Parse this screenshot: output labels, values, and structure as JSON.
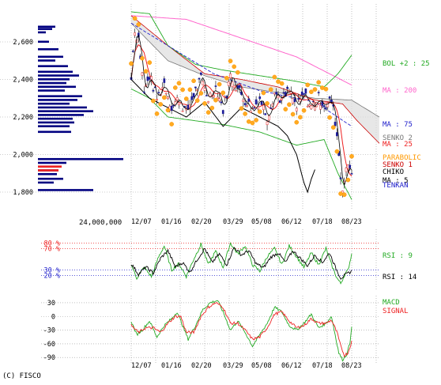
{
  "chart_data": [
    {
      "type": "line",
      "panel": "price",
      "ylim": [
        1720,
        2760
      ],
      "y_ticks": [
        "2,600",
        "2,400",
        "2,200",
        "2,000",
        "1,800"
      ],
      "y_tick_values": [
        2600,
        2400,
        2200,
        2000,
        1800
      ],
      "x_ticks": [
        "12/07",
        "01/16",
        "02/20",
        "03/29",
        "05/08",
        "06/12",
        "07/18",
        "08/23"
      ],
      "volume_label": "24,000,000",
      "grid": true,
      "volume_profile": [
        {
          "price": 2680,
          "w": 22
        },
        {
          "price": 2668,
          "w": 18
        },
        {
          "price": 2650,
          "w": 10
        },
        {
          "price": 2600,
          "w": 14
        },
        {
          "price": 2560,
          "w": 26
        },
        {
          "price": 2520,
          "w": 32
        },
        {
          "price": 2500,
          "w": 22
        },
        {
          "price": 2470,
          "w": 38
        },
        {
          "price": 2440,
          "w": 44
        },
        {
          "price": 2420,
          "w": 52
        },
        {
          "price": 2400,
          "w": 40
        },
        {
          "price": 2380,
          "w": 36
        },
        {
          "price": 2360,
          "w": 48
        },
        {
          "price": 2340,
          "w": 34
        },
        {
          "price": 2310,
          "w": 56
        },
        {
          "price": 2290,
          "w": 50
        },
        {
          "price": 2270,
          "w": 40
        },
        {
          "price": 2250,
          "w": 62
        },
        {
          "price": 2230,
          "w": 70
        },
        {
          "price": 2210,
          "w": 58
        },
        {
          "price": 2190,
          "w": 44
        },
        {
          "price": 2170,
          "w": 46
        },
        {
          "price": 2150,
          "w": 40
        },
        {
          "price": 2120,
          "w": 42
        },
        {
          "price": 1975,
          "w": 108
        },
        {
          "price": 1955,
          "w": 36
        },
        {
          "price": 1935,
          "w": 30
        },
        {
          "price": 1915,
          "w": 26
        },
        {
          "price": 1895,
          "w": 24
        },
        {
          "price": 1870,
          "w": 32
        },
        {
          "price": 1850,
          "w": 20
        },
        {
          "price": 1810,
          "w": 70
        }
      ],
      "volume_profile_red": [
        {
          "price": 1935,
          "w": 30
        },
        {
          "price": 1915,
          "w": 26
        }
      ],
      "series": [
        {
          "name": "BOL +2 : 25",
          "color": "#22aa22"
        },
        {
          "name": "MA : 200",
          "color": "#ff66cc"
        },
        {
          "name": "MA : 75",
          "color": "#2222cc"
        },
        {
          "name": "SENKO 2",
          "color": "#777777"
        },
        {
          "name": "MA : 25",
          "color": "#ee2222"
        },
        {
          "name": "PARABOLIC",
          "color": "#ff9900"
        },
        {
          "name": "SENKO 1",
          "color": "#cc0000"
        },
        {
          "name": "CHIKO",
          "color": "#000000"
        },
        {
          "name": "MA : 5",
          "color": "#000000"
        },
        {
          "name": "TENKAN",
          "color": "#2222cc"
        }
      ],
      "price_keypoints": [
        [
          0,
          2400
        ],
        [
          3,
          2660
        ],
        [
          8,
          2620
        ],
        [
          14,
          2330
        ],
        [
          20,
          2420
        ],
        [
          28,
          2300
        ],
        [
          36,
          2380
        ],
        [
          44,
          2250
        ],
        [
          52,
          2300
        ],
        [
          60,
          2220
        ],
        [
          68,
          2320
        ],
        [
          76,
          2400
        ],
        [
          84,
          2300
        ],
        [
          92,
          2360
        ],
        [
          100,
          2240
        ],
        [
          108,
          2420
        ],
        [
          116,
          2350
        ],
        [
          124,
          2290
        ],
        [
          132,
          2240
        ],
        [
          140,
          2300
        ],
        [
          148,
          2200
        ],
        [
          156,
          2330
        ],
        [
          164,
          2290
        ],
        [
          172,
          2340
        ],
        [
          180,
          2250
        ],
        [
          188,
          2320
        ],
        [
          196,
          2250
        ],
        [
          204,
          2300
        ],
        [
          212,
          2260
        ],
        [
          218,
          2290
        ],
        [
          223,
          2150
        ],
        [
          226,
          2000
        ],
        [
          229,
          1820
        ],
        [
          232,
          1860
        ],
        [
          236,
          1950
        ],
        [
          240,
          1920
        ]
      ],
      "ma75_keypoints": [
        [
          0,
          2700
        ],
        [
          40,
          2580
        ],
        [
          90,
          2430
        ],
        [
          140,
          2340
        ],
        [
          200,
          2280
        ],
        [
          240,
          2150
        ]
      ],
      "ma200_keypoints": [
        [
          0,
          2740
        ],
        [
          60,
          2720
        ],
        [
          120,
          2620
        ],
        [
          180,
          2520
        ],
        [
          240,
          2370
        ]
      ],
      "bol_upper_keypoints": [
        [
          0,
          2760
        ],
        [
          20,
          2750
        ],
        [
          40,
          2580
        ],
        [
          70,
          2480
        ],
        [
          100,
          2450
        ],
        [
          140,
          2420
        ],
        [
          180,
          2390
        ],
        [
          210,
          2360
        ],
        [
          225,
          2430
        ],
        [
          240,
          2530
        ]
      ],
      "bol_lower_keypoints": [
        [
          0,
          2350
        ],
        [
          20,
          2300
        ],
        [
          40,
          2200
        ],
        [
          70,
          2180
        ],
        [
          100,
          2160
        ],
        [
          140,
          2120
        ],
        [
          180,
          2050
        ],
        [
          210,
          2080
        ],
        [
          225,
          1900
        ],
        [
          240,
          1760
        ]
      ],
      "senko1_keypoints": [
        [
          0,
          2740
        ],
        [
          40,
          2580
        ],
        [
          80,
          2430
        ],
        [
          120,
          2400
        ],
        [
          160,
          2360
        ],
        [
          200,
          2290
        ],
        [
          230,
          2270
        ],
        [
          246,
          2180
        ],
        [
          262,
          2100
        ],
        [
          270,
          2060
        ]
      ],
      "senko2_keypoints": [
        [
          0,
          2700
        ],
        [
          40,
          2500
        ],
        [
          80,
          2420
        ],
        [
          120,
          2360
        ],
        [
          160,
          2330
        ],
        [
          200,
          2300
        ],
        [
          240,
          2290
        ],
        [
          270,
          2200
        ]
      ],
      "chiko_keypoints": [
        [
          0,
          2400
        ],
        [
          20,
          2300
        ],
        [
          40,
          2250
        ],
        [
          60,
          2200
        ],
        [
          80,
          2280
        ],
        [
          100,
          2150
        ],
        [
          120,
          2250
        ],
        [
          140,
          2200
        ],
        [
          160,
          2150
        ],
        [
          170,
          2100
        ],
        [
          180,
          2000
        ],
        [
          188,
          1850
        ],
        [
          192,
          1800
        ],
        [
          196,
          1870
        ],
        [
          200,
          1920
        ]
      ]
    },
    {
      "type": "line",
      "panel": "rsi",
      "ylim": [
        0,
        100
      ],
      "y_ticks": [
        "80 %",
        "70 %",
        "30 %",
        "20 %"
      ],
      "y_tick_values": [
        80,
        70,
        30,
        20
      ],
      "series": [
        {
          "name": "RSI : 9",
          "color": "#22aa22"
        },
        {
          "name": "RSI : 14",
          "color": "#000000"
        }
      ],
      "rsi9_keypoints": [
        [
          0,
          40
        ],
        [
          6,
          15
        ],
        [
          14,
          35
        ],
        [
          22,
          18
        ],
        [
          30,
          55
        ],
        [
          36,
          75
        ],
        [
          44,
          30
        ],
        [
          52,
          42
        ],
        [
          60,
          18
        ],
        [
          68,
          50
        ],
        [
          76,
          78
        ],
        [
          84,
          40
        ],
        [
          92,
          65
        ],
        [
          100,
          35
        ],
        [
          108,
          80
        ],
        [
          116,
          60
        ],
        [
          124,
          75
        ],
        [
          132,
          40
        ],
        [
          140,
          28
        ],
        [
          148,
          55
        ],
        [
          156,
          70
        ],
        [
          164,
          40
        ],
        [
          172,
          75
        ],
        [
          180,
          55
        ],
        [
          188,
          35
        ],
        [
          196,
          62
        ],
        [
          204,
          40
        ],
        [
          212,
          70
        ],
        [
          218,
          40
        ],
        [
          224,
          15
        ],
        [
          228,
          5
        ],
        [
          232,
          20
        ],
        [
          236,
          30
        ],
        [
          240,
          60
        ]
      ],
      "rsi14_keypoints": [
        [
          0,
          42
        ],
        [
          8,
          22
        ],
        [
          16,
          36
        ],
        [
          24,
          24
        ],
        [
          32,
          52
        ],
        [
          40,
          66
        ],
        [
          48,
          36
        ],
        [
          56,
          44
        ],
        [
          64,
          26
        ],
        [
          72,
          50
        ],
        [
          80,
          70
        ],
        [
          88,
          44
        ],
        [
          96,
          60
        ],
        [
          104,
          40
        ],
        [
          112,
          72
        ],
        [
          120,
          58
        ],
        [
          128,
          66
        ],
        [
          136,
          42
        ],
        [
          144,
          34
        ],
        [
          152,
          54
        ],
        [
          160,
          62
        ],
        [
          168,
          44
        ],
        [
          176,
          66
        ],
        [
          184,
          52
        ],
        [
          192,
          38
        ],
        [
          200,
          58
        ],
        [
          208,
          44
        ],
        [
          216,
          62
        ],
        [
          222,
          36
        ],
        [
          228,
          15
        ],
        [
          234,
          22
        ],
        [
          240,
          28
        ]
      ]
    },
    {
      "type": "line",
      "panel": "macd",
      "ylim": [
        -100,
        42
      ],
      "y_ticks": [
        "30",
        "0",
        "-30",
        "-60",
        "-90"
      ],
      "y_tick_values": [
        30,
        0,
        -30,
        -60,
        -90
      ],
      "x_ticks": [
        "12/07",
        "01/16",
        "02/20",
        "03/29",
        "05/08",
        "06/12",
        "07/18",
        "08/23"
      ],
      "series": [
        {
          "name": "MACD",
          "color": "#22aa22"
        },
        {
          "name": "SIGNAL",
          "color": "#ee2222"
        }
      ],
      "macd_keypoints": [
        [
          0,
          -10
        ],
        [
          6,
          -40
        ],
        [
          12,
          -30
        ],
        [
          20,
          -10
        ],
        [
          28,
          -45
        ],
        [
          36,
          -20
        ],
        [
          44,
          -5
        ],
        [
          50,
          10
        ],
        [
          56,
          -20
        ],
        [
          62,
          -50
        ],
        [
          70,
          -20
        ],
        [
          78,
          15
        ],
        [
          86,
          30
        ],
        [
          94,
          35
        ],
        [
          100,
          10
        ],
        [
          108,
          -30
        ],
        [
          116,
          -10
        ],
        [
          124,
          -35
        ],
        [
          132,
          -65
        ],
        [
          140,
          -40
        ],
        [
          148,
          -15
        ],
        [
          156,
          20
        ],
        [
          164,
          10
        ],
        [
          172,
          -20
        ],
        [
          180,
          -30
        ],
        [
          188,
          -15
        ],
        [
          196,
          5
        ],
        [
          204,
          -25
        ],
        [
          212,
          -15
        ],
        [
          218,
          0
        ],
        [
          222,
          -40
        ],
        [
          226,
          -80
        ],
        [
          230,
          -95
        ],
        [
          234,
          -85
        ],
        [
          238,
          -60
        ],
        [
          240,
          -20
        ]
      ],
      "signal_keypoints": [
        [
          0,
          -20
        ],
        [
          8,
          -35
        ],
        [
          16,
          -25
        ],
        [
          24,
          -25
        ],
        [
          32,
          -35
        ],
        [
          40,
          -15
        ],
        [
          48,
          0
        ],
        [
          54,
          0
        ],
        [
          60,
          -35
        ],
        [
          68,
          -35
        ],
        [
          76,
          0
        ],
        [
          84,
          20
        ],
        [
          92,
          30
        ],
        [
          100,
          20
        ],
        [
          108,
          -15
        ],
        [
          116,
          -15
        ],
        [
          124,
          -30
        ],
        [
          132,
          -50
        ],
        [
          140,
          -45
        ],
        [
          148,
          -25
        ],
        [
          156,
          5
        ],
        [
          164,
          10
        ],
        [
          172,
          -10
        ],
        [
          180,
          -25
        ],
        [
          188,
          -20
        ],
        [
          196,
          -5
        ],
        [
          204,
          -15
        ],
        [
          212,
          -15
        ],
        [
          218,
          -8
        ],
        [
          224,
          -35
        ],
        [
          228,
          -65
        ],
        [
          232,
          -85
        ],
        [
          236,
          -80
        ],
        [
          240,
          -55
        ]
      ]
    }
  ],
  "footer": {
    "copyright": "(C) FISCO"
  }
}
